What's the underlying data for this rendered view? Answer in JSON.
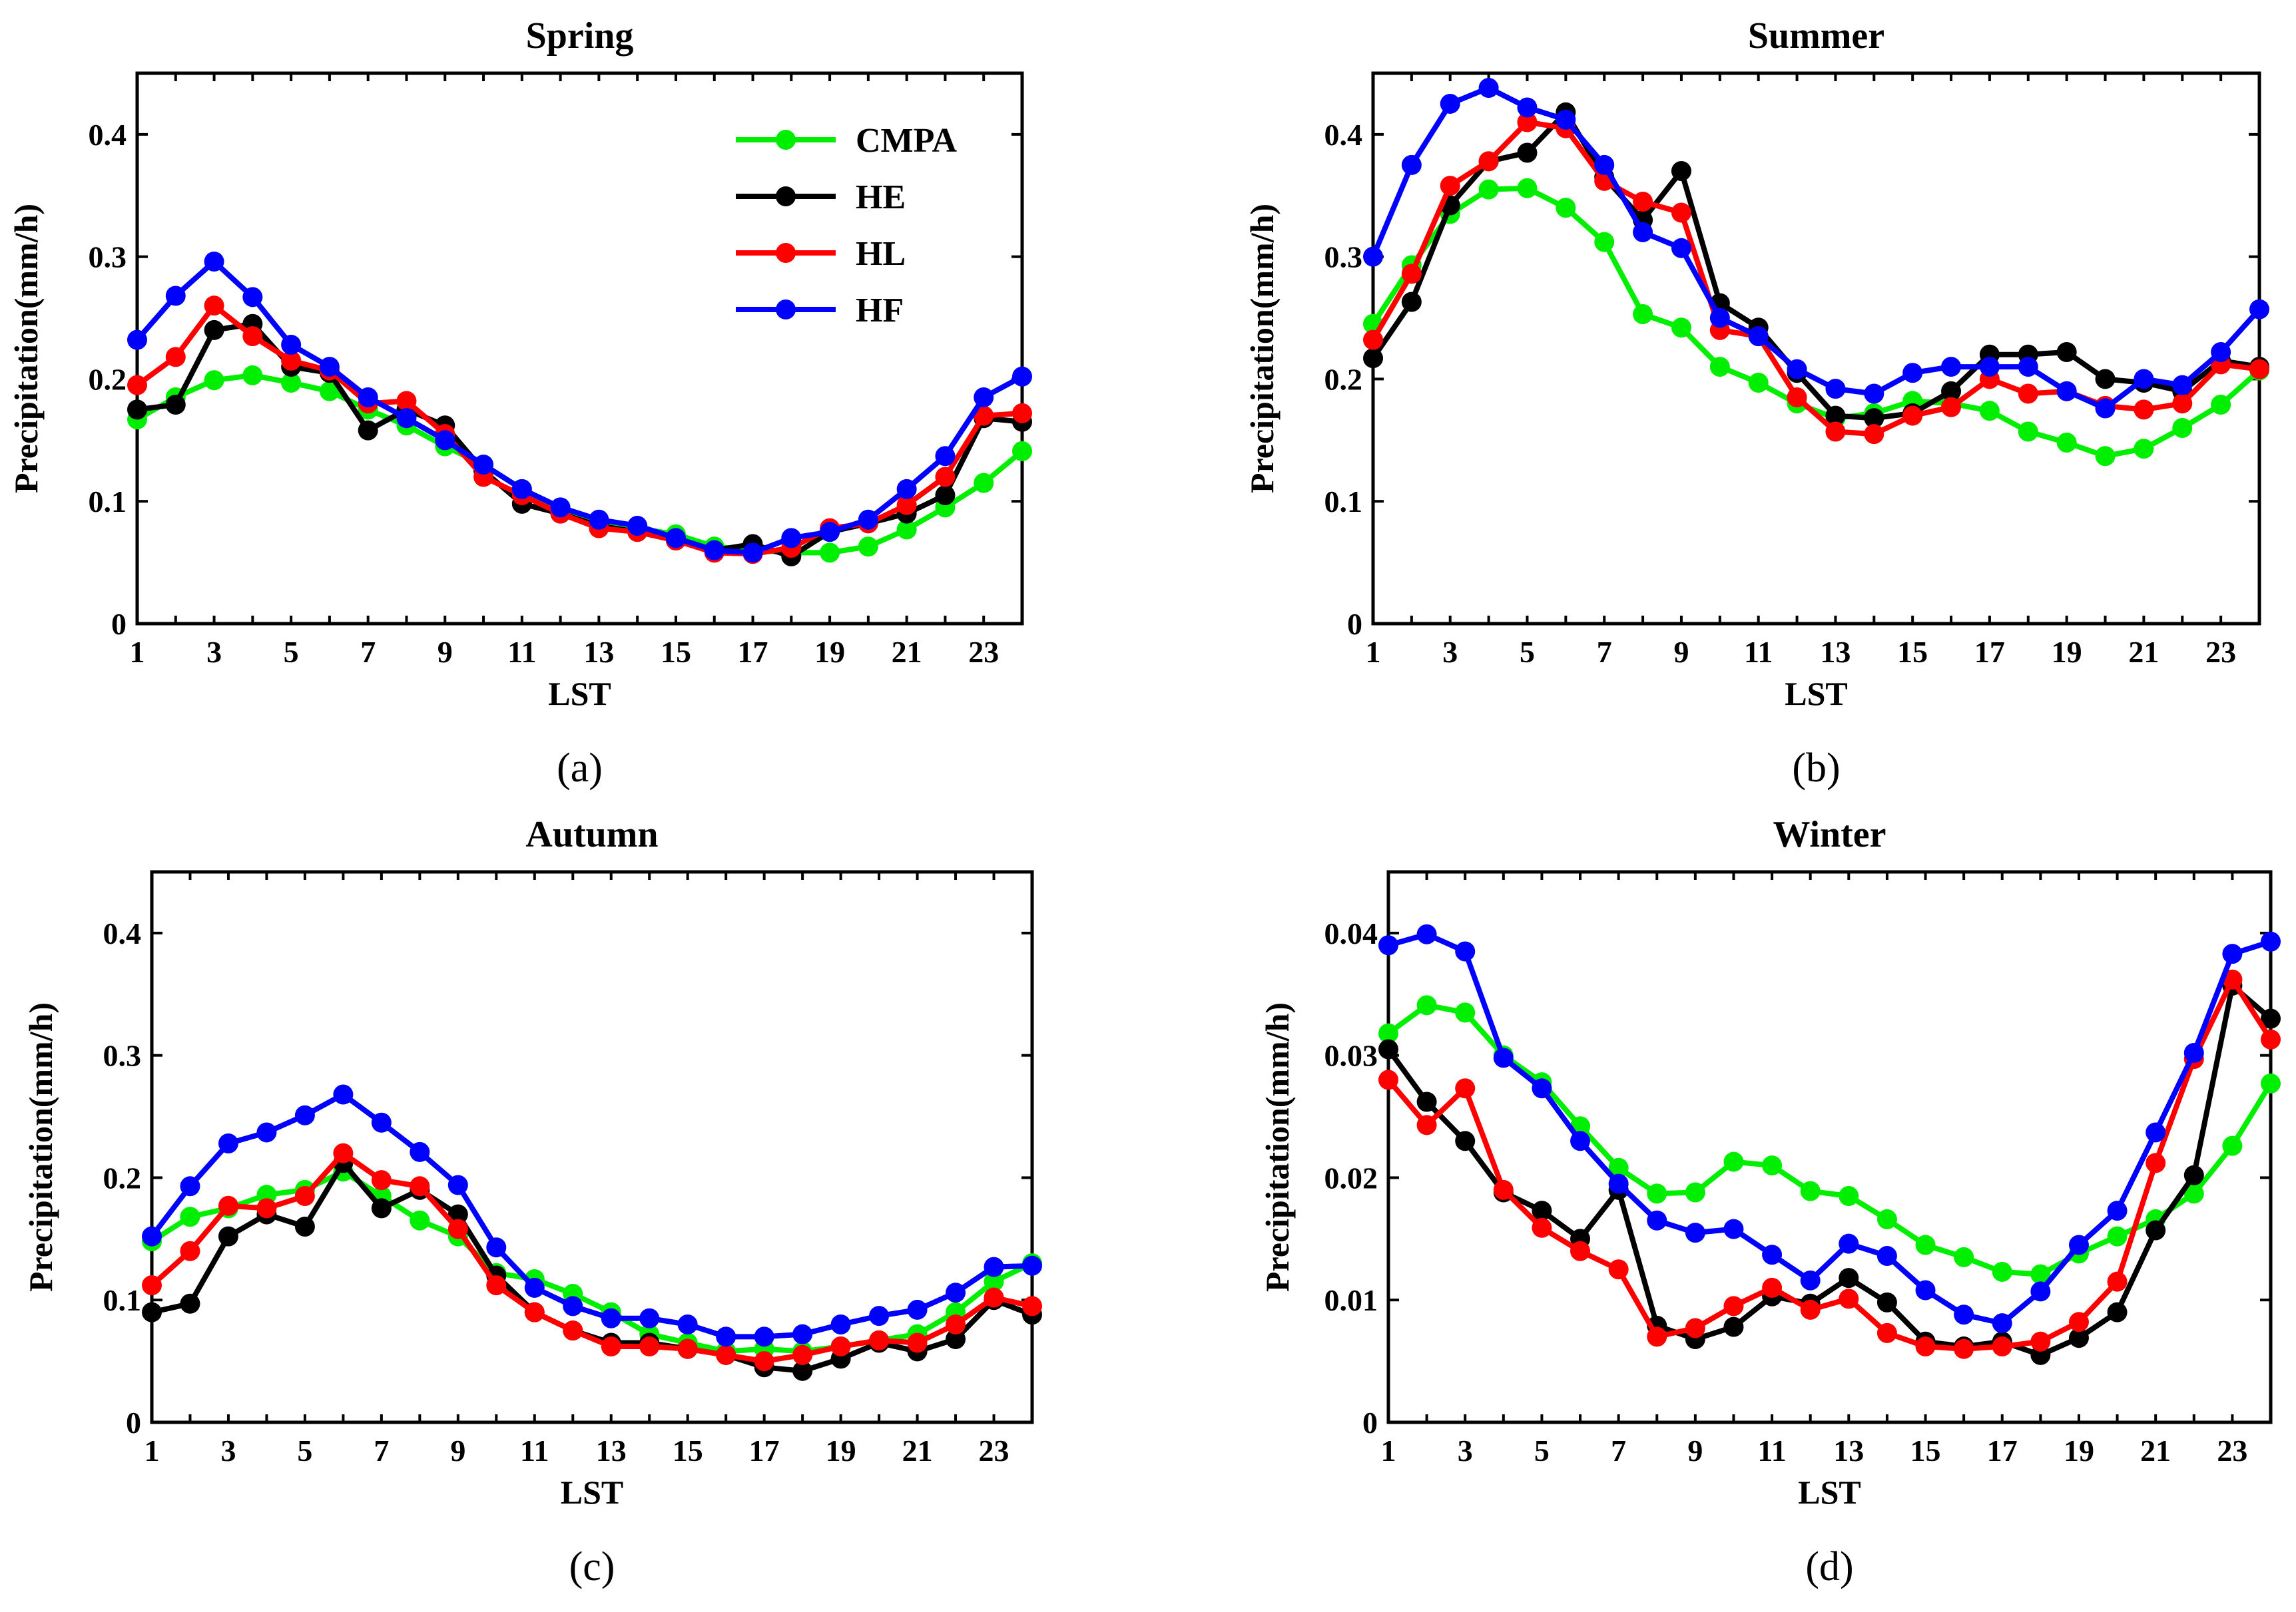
{
  "colors": {
    "CMPA": "#00ee00",
    "HE": "#000000",
    "HL": "#ff0000",
    "HF": "#0000ff"
  },
  "legend": {
    "entries": [
      "CMPA",
      "HE",
      "HL",
      "HF"
    ]
  },
  "chart_data": [
    {
      "type": "line",
      "title": "Spring",
      "panel_label": "(a)",
      "xlabel": "LST",
      "ylabel": "Precipitation(mm/h)",
      "xlim": [
        1,
        24
      ],
      "ylim": [
        0,
        0.45
      ],
      "xticks": [
        1,
        3,
        5,
        7,
        9,
        11,
        13,
        15,
        17,
        19,
        21,
        23
      ],
      "yticks": [
        0,
        0.1,
        0.2,
        0.3,
        0.4
      ],
      "ytick_labels": [
        "0",
        "0.1",
        "0.2",
        "0.3",
        "0.4"
      ],
      "x": [
        1,
        2,
        3,
        4,
        5,
        6,
        7,
        8,
        9,
        10,
        11,
        12,
        13,
        14,
        15,
        16,
        17,
        18,
        19,
        20,
        21,
        22,
        23,
        24
      ],
      "series": [
        {
          "name": "CMPA",
          "values": [
            0.167,
            0.185,
            0.199,
            0.203,
            0.197,
            0.19,
            0.175,
            0.162,
            0.145,
            0.13,
            0.11,
            0.093,
            0.083,
            0.078,
            0.073,
            0.063,
            0.06,
            0.058,
            0.058,
            0.063,
            0.077,
            0.095,
            0.115,
            0.141
          ]
        },
        {
          "name": "HE",
          "values": [
            0.175,
            0.179,
            0.24,
            0.245,
            0.21,
            0.205,
            0.158,
            0.175,
            0.162,
            0.125,
            0.098,
            0.09,
            0.08,
            0.075,
            0.068,
            0.06,
            0.065,
            0.055,
            0.075,
            0.082,
            0.09,
            0.105,
            0.168,
            0.165
          ]
        },
        {
          "name": "HL",
          "values": [
            0.195,
            0.218,
            0.26,
            0.235,
            0.215,
            0.207,
            0.18,
            0.182,
            0.155,
            0.12,
            0.105,
            0.09,
            0.078,
            0.075,
            0.068,
            0.058,
            0.057,
            0.062,
            0.078,
            0.082,
            0.097,
            0.12,
            0.17,
            0.172
          ]
        },
        {
          "name": "HF",
          "values": [
            0.232,
            0.268,
            0.296,
            0.267,
            0.228,
            0.21,
            0.185,
            0.168,
            0.15,
            0.13,
            0.11,
            0.095,
            0.085,
            0.08,
            0.07,
            0.06,
            0.058,
            0.07,
            0.075,
            0.085,
            0.11,
            0.137,
            0.185,
            0.202
          ]
        }
      ]
    },
    {
      "type": "line",
      "title": "Summer",
      "panel_label": "(b)",
      "xlabel": "LST",
      "ylabel": "Precipitation(mm/h)",
      "xlim": [
        1,
        24
      ],
      "ylim": [
        0,
        0.45
      ],
      "xticks": [
        1,
        3,
        5,
        7,
        9,
        11,
        13,
        15,
        17,
        19,
        21,
        23
      ],
      "yticks": [
        0,
        0.1,
        0.2,
        0.3,
        0.4
      ],
      "ytick_labels": [
        "0",
        "0.1",
        "0.2",
        "0.3",
        "0.4"
      ],
      "x": [
        1,
        2,
        3,
        4,
        5,
        6,
        7,
        8,
        9,
        10,
        11,
        12,
        13,
        14,
        15,
        16,
        17,
        18,
        19,
        20,
        21,
        22,
        23,
        24
      ],
      "series": [
        {
          "name": "CMPA",
          "values": [
            0.245,
            0.293,
            0.335,
            0.355,
            0.356,
            0.34,
            0.312,
            0.253,
            0.242,
            0.21,
            0.197,
            0.18,
            0.168,
            0.172,
            0.182,
            0.18,
            0.174,
            0.157,
            0.148,
            0.137,
            0.143,
            0.16,
            0.179,
            0.207
          ]
        },
        {
          "name": "HE",
          "values": [
            0.217,
            0.263,
            0.342,
            0.378,
            0.385,
            0.418,
            0.365,
            0.33,
            0.37,
            0.262,
            0.242,
            0.205,
            0.17,
            0.168,
            0.172,
            0.19,
            0.22,
            0.22,
            0.222,
            0.2,
            0.197,
            0.19,
            0.215,
            0.21
          ]
        },
        {
          "name": "HL",
          "values": [
            0.232,
            0.286,
            0.358,
            0.378,
            0.41,
            0.405,
            0.362,
            0.345,
            0.336,
            0.24,
            0.235,
            0.185,
            0.157,
            0.155,
            0.17,
            0.177,
            0.2,
            0.188,
            0.19,
            0.178,
            0.175,
            0.18,
            0.212,
            0.208
          ]
        },
        {
          "name": "HF",
          "values": [
            0.3,
            0.375,
            0.425,
            0.438,
            0.422,
            0.412,
            0.375,
            0.32,
            0.307,
            0.25,
            0.235,
            0.208,
            0.192,
            0.188,
            0.205,
            0.21,
            0.21,
            0.21,
            0.19,
            0.176,
            0.2,
            0.195,
            0.222,
            0.257
          ]
        }
      ]
    },
    {
      "type": "line",
      "title": "Autumn",
      "panel_label": "(c)",
      "xlabel": "LST",
      "ylabel": "Precipitation(mm/h)",
      "xlim": [
        1,
        24
      ],
      "ylim": [
        0,
        0.45
      ],
      "xticks": [
        1,
        3,
        5,
        7,
        9,
        11,
        13,
        15,
        17,
        19,
        21,
        23
      ],
      "yticks": [
        0,
        0.1,
        0.2,
        0.3,
        0.4
      ],
      "ytick_labels": [
        "0",
        "0.1",
        "0.2",
        "0.3",
        "0.4"
      ],
      "x": [
        1,
        2,
        3,
        4,
        5,
        6,
        7,
        8,
        9,
        10,
        11,
        12,
        13,
        14,
        15,
        16,
        17,
        18,
        19,
        20,
        21,
        22,
        23,
        24
      ],
      "series": [
        {
          "name": "CMPA",
          "values": [
            0.148,
            0.168,
            0.175,
            0.186,
            0.19,
            0.205,
            0.185,
            0.165,
            0.152,
            0.122,
            0.117,
            0.105,
            0.09,
            0.072,
            0.065,
            0.058,
            0.06,
            0.058,
            0.062,
            0.067,
            0.072,
            0.09,
            0.115,
            0.13
          ]
        },
        {
          "name": "HE",
          "values": [
            0.09,
            0.097,
            0.152,
            0.17,
            0.16,
            0.212,
            0.175,
            0.19,
            0.17,
            0.12,
            0.09,
            0.075,
            0.065,
            0.065,
            0.06,
            0.055,
            0.045,
            0.042,
            0.052,
            0.065,
            0.058,
            0.068,
            0.1,
            0.088
          ]
        },
        {
          "name": "HL",
          "values": [
            0.112,
            0.14,
            0.177,
            0.175,
            0.185,
            0.22,
            0.198,
            0.193,
            0.158,
            0.112,
            0.09,
            0.075,
            0.062,
            0.062,
            0.06,
            0.055,
            0.05,
            0.055,
            0.062,
            0.067,
            0.065,
            0.08,
            0.102,
            0.095
          ]
        },
        {
          "name": "HF",
          "values": [
            0.152,
            0.193,
            0.228,
            0.237,
            0.251,
            0.268,
            0.245,
            0.221,
            0.194,
            0.143,
            0.11,
            0.095,
            0.085,
            0.085,
            0.08,
            0.07,
            0.07,
            0.072,
            0.08,
            0.087,
            0.092,
            0.106,
            0.127,
            0.128
          ]
        }
      ]
    },
    {
      "type": "line",
      "title": "Winter",
      "panel_label": "(d)",
      "xlabel": "LST",
      "ylabel": "Precipitation(mm/h)",
      "xlim": [
        1,
        24
      ],
      "ylim": [
        0,
        0.045
      ],
      "xticks": [
        1,
        3,
        5,
        7,
        9,
        11,
        13,
        15,
        17,
        19,
        21,
        23
      ],
      "yticks": [
        0,
        0.01,
        0.02,
        0.03,
        0.04
      ],
      "ytick_labels": [
        "0",
        "0.01",
        "0.02",
        "0.03",
        "0.04"
      ],
      "x": [
        1,
        2,
        3,
        4,
        5,
        6,
        7,
        8,
        9,
        10,
        11,
        12,
        13,
        14,
        15,
        16,
        17,
        18,
        19,
        20,
        21,
        22,
        23,
        24
      ],
      "series": [
        {
          "name": "CMPA",
          "values": [
            0.0318,
            0.0341,
            0.0335,
            0.03,
            0.0278,
            0.0242,
            0.0208,
            0.0187,
            0.0188,
            0.0213,
            0.021,
            0.0189,
            0.0185,
            0.0166,
            0.0145,
            0.0135,
            0.0123,
            0.0121,
            0.0138,
            0.0152,
            0.0166,
            0.0187,
            0.0226,
            0.0277
          ]
        },
        {
          "name": "HE",
          "values": [
            0.0305,
            0.0262,
            0.023,
            0.0188,
            0.0173,
            0.015,
            0.019,
            0.0079,
            0.0068,
            0.0078,
            0.0103,
            0.0097,
            0.0118,
            0.0098,
            0.0066,
            0.0062,
            0.0066,
            0.0055,
            0.0069,
            0.009,
            0.0157,
            0.0202,
            0.0357,
            0.033
          ]
        },
        {
          "name": "HL",
          "values": [
            0.028,
            0.0243,
            0.0273,
            0.019,
            0.0159,
            0.014,
            0.0125,
            0.007,
            0.0077,
            0.0095,
            0.011,
            0.0092,
            0.0101,
            0.0073,
            0.0062,
            0.006,
            0.0062,
            0.0066,
            0.0082,
            0.0115,
            0.0212,
            0.0297,
            0.0362,
            0.0313
          ]
        },
        {
          "name": "HF",
          "values": [
            0.039,
            0.0399,
            0.0385,
            0.0298,
            0.0273,
            0.023,
            0.0195,
            0.0165,
            0.0155,
            0.0158,
            0.0137,
            0.0116,
            0.0146,
            0.0136,
            0.0108,
            0.0088,
            0.0081,
            0.0107,
            0.0145,
            0.0173,
            0.0237,
            0.0302,
            0.0383,
            0.0393
          ]
        }
      ]
    }
  ]
}
